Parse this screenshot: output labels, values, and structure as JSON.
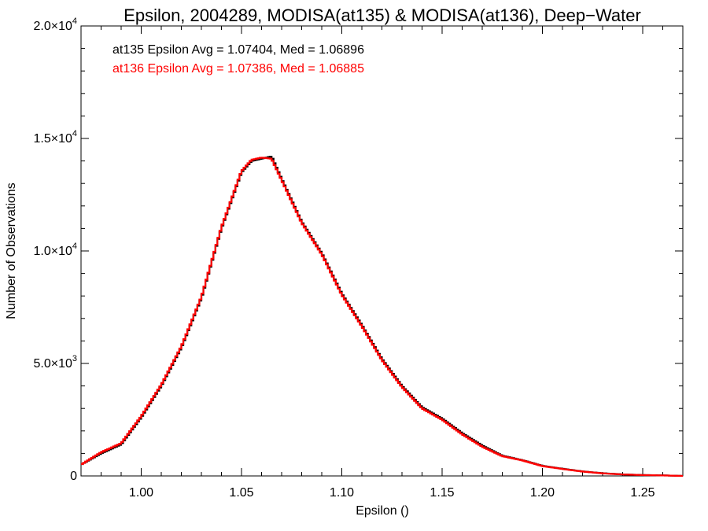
{
  "chart_data": {
    "type": "line",
    "title": "Epsilon, 2004289, MODISA(at135) & MODISA(at136), Deep−Water",
    "xlabel": "Epsilon ()",
    "ylabel": "Number of Observations",
    "xlim": [
      0.97,
      1.27
    ],
    "ylim": [
      0,
      20000
    ],
    "x_ticks": [
      {
        "value": 1.0,
        "label": "1.00"
      },
      {
        "value": 1.05,
        "label": "1.05"
      },
      {
        "value": 1.1,
        "label": "1.10"
      },
      {
        "value": 1.15,
        "label": "1.15"
      },
      {
        "value": 1.2,
        "label": "1.20"
      },
      {
        "value": 1.25,
        "label": "1.25"
      }
    ],
    "y_ticks": [
      {
        "value": 0,
        "base": "0",
        "exp": ""
      },
      {
        "value": 5000,
        "base": "5.0×10",
        "exp": "3"
      },
      {
        "value": 10000,
        "base": "1.0×10",
        "exp": "4"
      },
      {
        "value": 15000,
        "base": "1.5×10",
        "exp": "4"
      },
      {
        "value": 20000,
        "base": "2.0×10",
        "exp": "4"
      }
    ],
    "grid": false,
    "annotations": [
      {
        "text": "at135 Epsilon Avg = 1.07404, Med = 1.06896",
        "color": "#000000"
      },
      {
        "text": "at136 Epsilon Avg = 1.07386, Med = 1.06885",
        "color": "#ff0000"
      }
    ],
    "series": [
      {
        "color": "#000000",
        "x": [
          0.97,
          0.98,
          0.99,
          1.0,
          1.01,
          1.02,
          1.03,
          1.04,
          1.05,
          1.055,
          1.06,
          1.065,
          1.07,
          1.08,
          1.09,
          1.1,
          1.11,
          1.12,
          1.13,
          1.14,
          1.15,
          1.16,
          1.17,
          1.18,
          1.19,
          1.2,
          1.21,
          1.22,
          1.23,
          1.24,
          1.25,
          1.26,
          1.27
        ],
        "y": [
          500,
          1000,
          1400,
          2600,
          4000,
          5700,
          7900,
          11000,
          13500,
          14000,
          14100,
          14200,
          13200,
          11300,
          9900,
          8100,
          6700,
          5200,
          4000,
          3050,
          2550,
          1900,
          1350,
          900,
          700,
          450,
          320,
          200,
          120,
          70,
          40,
          25,
          0
        ]
      },
      {
        "color": "#ff0000",
        "x": [
          0.97,
          0.98,
          0.99,
          1.0,
          1.01,
          1.02,
          1.03,
          1.04,
          1.05,
          1.055,
          1.06,
          1.065,
          1.07,
          1.08,
          1.09,
          1.1,
          1.11,
          1.12,
          1.13,
          1.14,
          1.15,
          1.16,
          1.17,
          1.18,
          1.19,
          1.2,
          1.21,
          1.22,
          1.23,
          1.24,
          1.25,
          1.26,
          1.27
        ],
        "y": [
          500,
          1050,
          1450,
          2650,
          4050,
          5750,
          7950,
          11050,
          13550,
          14050,
          14150,
          14100,
          13150,
          11250,
          9850,
          8050,
          6650,
          5150,
          3950,
          3000,
          2500,
          1850,
          1300,
          880,
          690,
          440,
          310,
          195,
          115,
          65,
          38,
          22,
          0
        ]
      }
    ]
  }
}
